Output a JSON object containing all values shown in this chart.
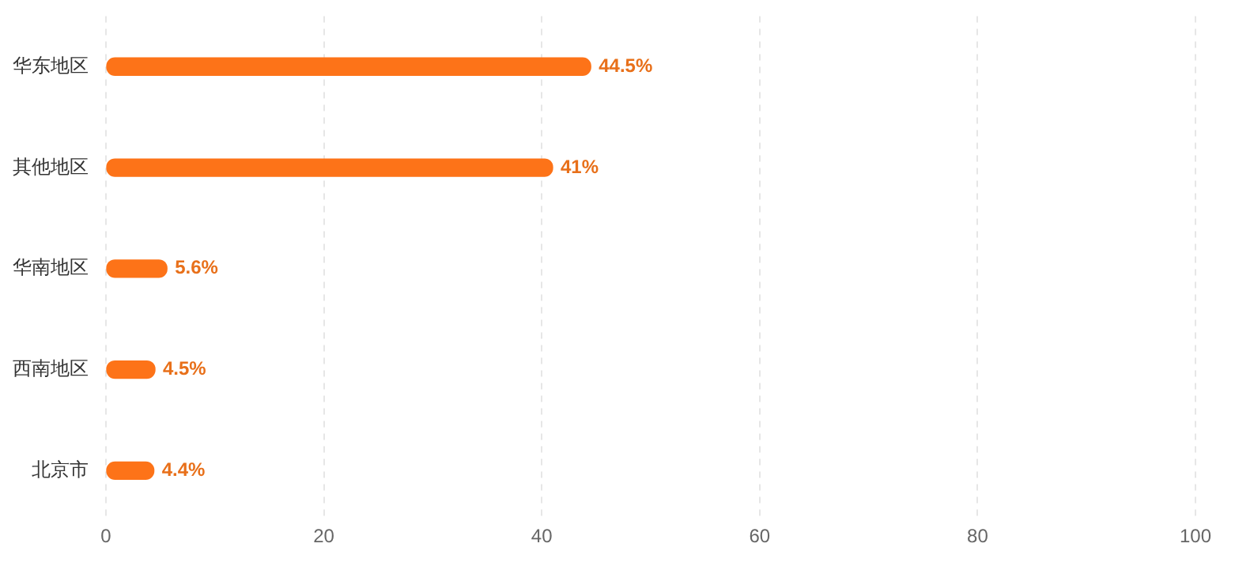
{
  "chart_data": {
    "type": "bar",
    "orientation": "horizontal",
    "categories": [
      "华东地区",
      "其他地区",
      "华南地区",
      "西南地区",
      "北京市"
    ],
    "values": [
      44.5,
      41,
      5.6,
      4.5,
      4.4
    ],
    "value_labels": [
      "44.5%",
      "41%",
      "5.6%",
      "4.5%",
      "4.4%"
    ],
    "color": "#fd7318",
    "xlim": [
      0,
      100
    ],
    "xticks": [
      0,
      20,
      40,
      60,
      80,
      100
    ],
    "grid": "x",
    "legend": false
  }
}
